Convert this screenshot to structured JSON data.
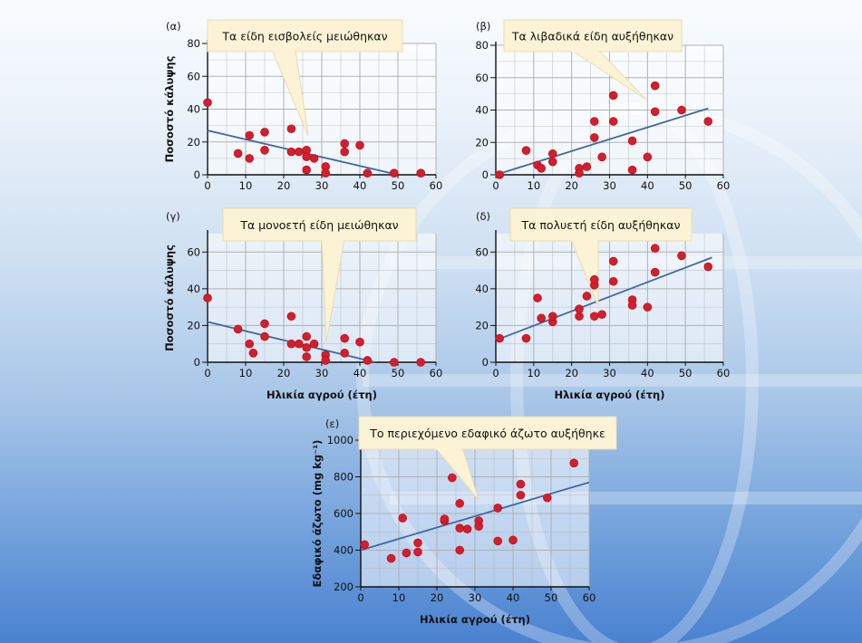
{
  "colors": {
    "point": "#d71d2b",
    "point_stroke": "#b21420",
    "trend": "#3f67a3",
    "grid": "#aeb1b4",
    "callout": "#fcf3d6",
    "callout_stroke": "#e9dcae"
  },
  "x_axis_label": "Ηλικία αγρού (έτη)",
  "coverage_y_label": "Ποσοστό κάλυψης",
  "nitrogen_y_label": "Εδαφικό άζωτο (mg kg⁻¹)",
  "chart_data": [
    {
      "type": "scatter",
      "panel_label": "(α)",
      "callout": "Τα είδη εισβολείς μειώθηκαν",
      "ylabel": "Ποσοστό κάλυψης",
      "xlabel": "",
      "xlim": [
        0,
        60
      ],
      "ylim": [
        0,
        80
      ],
      "x_ticks": [
        0,
        10,
        20,
        30,
        40,
        50,
        60
      ],
      "y_ticks": [
        0,
        20,
        40,
        60,
        80
      ],
      "trend": [
        [
          0,
          27
        ],
        [
          50,
          0
        ]
      ],
      "points": [
        [
          0,
          44
        ],
        [
          8,
          13
        ],
        [
          11,
          10
        ],
        [
          11,
          24
        ],
        [
          15,
          15
        ],
        [
          15,
          26
        ],
        [
          22,
          28
        ],
        [
          22,
          14
        ],
        [
          24,
          14
        ],
        [
          26,
          15
        ],
        [
          26,
          11
        ],
        [
          26,
          3
        ],
        [
          28,
          10
        ],
        [
          31,
          5
        ],
        [
          31,
          1
        ],
        [
          36,
          19
        ],
        [
          36,
          14
        ],
        [
          40,
          18
        ],
        [
          42,
          1
        ],
        [
          49,
          1
        ],
        [
          56,
          1
        ]
      ]
    },
    {
      "type": "scatter",
      "panel_label": "(β)",
      "callout": "Τα λιβαδικά είδη αυξήθηκαν",
      "ylabel": "",
      "xlabel": "",
      "xlim": [
        0,
        60
      ],
      "ylim": [
        0,
        80
      ],
      "x_ticks": [
        0,
        10,
        20,
        30,
        40,
        50,
        60
      ],
      "y_ticks": [
        0,
        20,
        40,
        60,
        80
      ],
      "trend": [
        [
          0,
          0
        ],
        [
          56,
          41
        ]
      ],
      "points": [
        [
          1,
          0
        ],
        [
          8,
          15
        ],
        [
          11,
          6
        ],
        [
          12,
          4
        ],
        [
          15,
          13
        ],
        [
          15,
          8
        ],
        [
          22,
          4
        ],
        [
          22,
          1
        ],
        [
          24,
          5
        ],
        [
          26,
          23
        ],
        [
          26,
          33
        ],
        [
          28,
          11
        ],
        [
          31,
          49
        ],
        [
          31,
          33
        ],
        [
          36,
          21
        ],
        [
          36,
          3
        ],
        [
          40,
          11
        ],
        [
          42,
          39
        ],
        [
          42,
          55
        ],
        [
          49,
          40
        ],
        [
          56,
          33
        ]
      ]
    },
    {
      "type": "scatter",
      "panel_label": "(γ)",
      "callout": "Τα μονοετή είδη μειώθηκαν",
      "ylabel": "Ποσοστό κάλυψης",
      "xlabel": "Ηλικία αγρού (έτη)",
      "xlim": [
        0,
        60
      ],
      "ylim": [
        0,
        70
      ],
      "x_ticks": [
        0,
        10,
        20,
        30,
        40,
        50,
        60
      ],
      "y_ticks": [
        0,
        20,
        40,
        60
      ],
      "trend": [
        [
          0,
          22
        ],
        [
          44,
          0
        ]
      ],
      "points": [
        [
          0,
          35
        ],
        [
          8,
          18
        ],
        [
          11,
          10
        ],
        [
          12,
          5
        ],
        [
          15,
          21
        ],
        [
          15,
          14
        ],
        [
          22,
          25
        ],
        [
          22,
          10
        ],
        [
          24,
          10
        ],
        [
          26,
          14
        ],
        [
          26,
          8
        ],
        [
          26,
          3
        ],
        [
          28,
          10
        ],
        [
          31,
          4
        ],
        [
          31,
          1
        ],
        [
          36,
          13
        ],
        [
          36,
          5
        ],
        [
          40,
          11
        ],
        [
          42,
          1
        ],
        [
          49,
          0
        ],
        [
          56,
          0
        ]
      ]
    },
    {
      "type": "scatter",
      "panel_label": "(δ)",
      "callout": "Τα πολυετή είδη αυξήθηκαν",
      "ylabel": "",
      "xlabel": "Ηλικία αγρού (έτη)",
      "xlim": [
        0,
        60
      ],
      "ylim": [
        0,
        70
      ],
      "x_ticks": [
        0,
        10,
        20,
        30,
        40,
        50,
        60
      ],
      "y_ticks": [
        0,
        20,
        40,
        60
      ],
      "trend": [
        [
          0,
          12
        ],
        [
          57,
          57
        ]
      ],
      "points": [
        [
          1,
          13
        ],
        [
          8,
          13
        ],
        [
          11,
          35
        ],
        [
          12,
          24
        ],
        [
          15,
          22
        ],
        [
          15,
          25
        ],
        [
          22,
          29
        ],
        [
          22,
          25
        ],
        [
          24,
          36
        ],
        [
          26,
          42
        ],
        [
          26,
          45
        ],
        [
          26,
          25
        ],
        [
          28,
          26
        ],
        [
          31,
          55
        ],
        [
          31,
          44
        ],
        [
          36,
          34
        ],
        [
          36,
          31
        ],
        [
          40,
          30
        ],
        [
          42,
          62
        ],
        [
          42,
          49
        ],
        [
          49,
          58
        ],
        [
          56,
          52
        ]
      ]
    },
    {
      "type": "scatter",
      "panel_label": "(ε)",
      "callout": "Το περιεχόμενο εδαφικό άζωτο αυξήθηκε",
      "ylabel": "Εδαφικό άζωτο (mg kg⁻¹)",
      "xlabel": "Ηλικία αγρού (έτη)",
      "xlim": [
        0,
        60
      ],
      "ylim": [
        200,
        1000
      ],
      "x_ticks": [
        0,
        10,
        20,
        30,
        40,
        50,
        60
      ],
      "y_ticks": [
        200,
        400,
        600,
        800,
        1000
      ],
      "trend": [
        [
          0,
          400
        ],
        [
          60,
          770
        ]
      ],
      "points": [
        [
          1,
          430
        ],
        [
          8,
          355
        ],
        [
          11,
          575
        ],
        [
          12,
          385
        ],
        [
          15,
          440
        ],
        [
          15,
          390
        ],
        [
          22,
          560
        ],
        [
          22,
          570
        ],
        [
          24,
          795
        ],
        [
          26,
          655
        ],
        [
          26,
          520
        ],
        [
          26,
          400
        ],
        [
          28,
          515
        ],
        [
          31,
          560
        ],
        [
          31,
          530
        ],
        [
          36,
          630
        ],
        [
          36,
          450
        ],
        [
          40,
          455
        ],
        [
          42,
          760
        ],
        [
          42,
          700
        ],
        [
          49,
          685
        ],
        [
          56,
          875
        ]
      ]
    }
  ]
}
